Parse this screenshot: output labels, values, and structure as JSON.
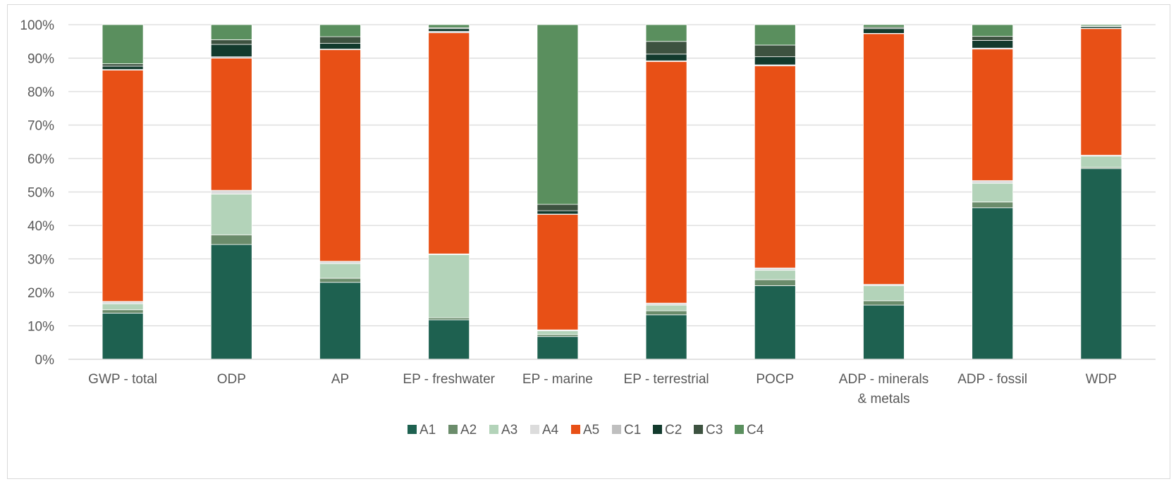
{
  "chart_data": {
    "type": "bar",
    "stacked": true,
    "title": "",
    "xlabel": "",
    "ylabel": "",
    "ylim": [
      0,
      100
    ],
    "y_ticks": [
      "0%",
      "10%",
      "20%",
      "30%",
      "40%",
      "50%",
      "60%",
      "70%",
      "80%",
      "90%",
      "100%"
    ],
    "grid": true,
    "legend_position": "bottom",
    "categories": [
      [
        "GWP - total"
      ],
      [
        "ODP"
      ],
      [
        "AP"
      ],
      [
        "EP - freshwater"
      ],
      [
        "EP - marine"
      ],
      [
        "EP - terrestrial"
      ],
      [
        "POCP"
      ],
      [
        "ADP - minerals",
        "& metals"
      ],
      [
        "ADP - fossil"
      ],
      [
        "WDP"
      ]
    ],
    "series": [
      {
        "name": "A1",
        "color": "#1e6150",
        "values": [
          13.8,
          34.3,
          23.0,
          11.8,
          6.8,
          13.3,
          22.0,
          16.2,
          45.3,
          57.0
        ]
      },
      {
        "name": "A2",
        "color": "#6b8c6b",
        "values": [
          1.0,
          2.9,
          1.2,
          0.6,
          0.6,
          1.2,
          1.8,
          1.3,
          1.7,
          0.4
        ]
      },
      {
        "name": "A3",
        "color": "#b3d3b9",
        "values": [
          1.8,
          12.2,
          4.4,
          18.9,
          1.1,
          1.7,
          2.8,
          4.5,
          5.6,
          3.3
        ]
      },
      {
        "name": "A4",
        "color": "#dcdcdc",
        "values": [
          0.7,
          1.1,
          0.7,
          0.2,
          0.3,
          0.6,
          0.7,
          0.4,
          0.8,
          0.3
        ]
      },
      {
        "name": "A5",
        "color": "#e85016",
        "values": [
          69.1,
          39.5,
          63.2,
          66.1,
          34.5,
          72.2,
          60.4,
          74.9,
          39.3,
          37.8
        ]
      },
      {
        "name": "C1",
        "color": "#bfbfbf",
        "values": [
          0.2,
          0.4,
          0.2,
          0.4,
          0.1,
          0.2,
          0.3,
          0.1,
          0.3,
          0.1
        ]
      },
      {
        "name": "C2",
        "color": "#123a2d",
        "values": [
          1.0,
          3.7,
          1.7,
          0.8,
          1.0,
          2.0,
          2.4,
          1.4,
          2.3,
          0.5
        ]
      },
      {
        "name": "C3",
        "color": "#3d5240",
        "values": [
          0.7,
          1.4,
          2.0,
          0.3,
          1.9,
          3.8,
          3.5,
          0.4,
          1.2,
          0.2
        ]
      },
      {
        "name": "C4",
        "color": "#5a8f5e",
        "values": [
          11.7,
          4.5,
          3.6,
          0.9,
          53.7,
          5.0,
          6.1,
          0.8,
          3.5,
          0.4
        ]
      }
    ]
  }
}
